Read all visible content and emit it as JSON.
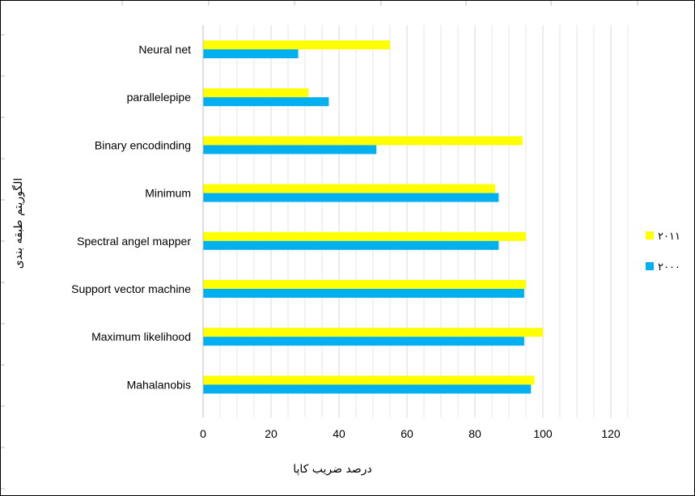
{
  "chart_data": {
    "type": "bar",
    "orientation": "horizontal",
    "title": "",
    "xlabel": "درصد ضریب کاپا",
    "ylabel": "الگوریتم طبقه بندی",
    "xlim": [
      0,
      120
    ],
    "xticks": [
      "0",
      "20",
      "40",
      "60",
      "80",
      "100",
      "120"
    ],
    "categories": [
      "Neural net",
      "parallelepipe",
      "Binary encodinding",
      "Minimum",
      "Spectral angel mapper",
      "Support vector machine",
      "Maximum likelihood",
      "Mahalanobis"
    ],
    "series": [
      {
        "name": "۲۰۱۱",
        "color": "#ffff00",
        "values": [
          55,
          31,
          94,
          86,
          95,
          95,
          100,
          97.5
        ]
      },
      {
        "name": "۲۰۰۰",
        "color": "#00b0f0",
        "values": [
          28,
          37,
          51,
          87,
          87,
          94.5,
          94.5,
          96.5
        ]
      }
    ],
    "grid": "vertical",
    "legend": "right"
  }
}
